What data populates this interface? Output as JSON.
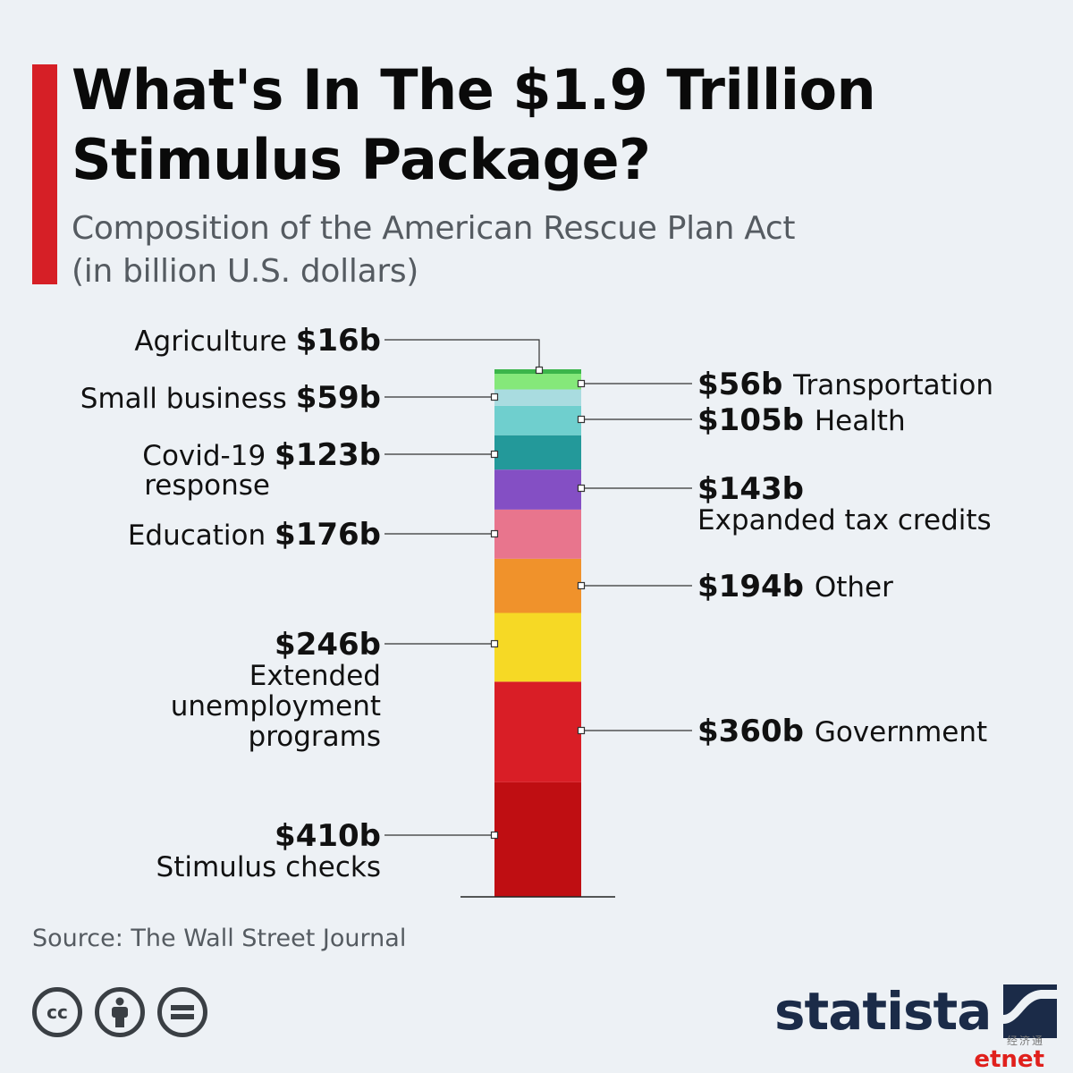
{
  "header": {
    "title_line1": "What's In The $1.9 Trillion",
    "title_line2": "Stimulus Package?",
    "subtitle_line1": "Composition of the American Rescue Plan Act",
    "subtitle_line2": "(in billion U.S. dollars)"
  },
  "chart_data": {
    "type": "bar",
    "subtype": "stacked-single-column",
    "title": "What's In The $1.9 Trillion Stimulus Package?",
    "subtitle": "Composition of the American Rescue Plan Act (in billion U.S. dollars)",
    "unit": "billion U.S. dollars",
    "series": [
      {
        "name": "Stimulus checks",
        "value": 410,
        "value_label": "$410b",
        "label_lines": [
          "Stimulus checks"
        ],
        "color": "#bf0e12",
        "side": "left"
      },
      {
        "name": "Government",
        "value": 360,
        "value_label": "$360b",
        "label_lines": [
          "Government"
        ],
        "color": "#d91e26",
        "side": "right"
      },
      {
        "name": "Extended unemployment programs",
        "value": 246,
        "value_label": "$246b",
        "label_lines": [
          "Extended",
          "unemployment",
          "programs"
        ],
        "color": "#f6d925",
        "side": "left"
      },
      {
        "name": "Other",
        "value": 194,
        "value_label": "$194b",
        "label_lines": [
          "Other"
        ],
        "color": "#f0922b",
        "side": "right"
      },
      {
        "name": "Education",
        "value": 176,
        "value_label": "$176b",
        "label_lines": [
          "Education"
        ],
        "color": "#e8758d",
        "side": "left"
      },
      {
        "name": "Expanded tax credits",
        "value": 143,
        "value_label": "$143b",
        "label_lines": [
          "Expanded tax credits"
        ],
        "color": "#844fc4",
        "side": "right"
      },
      {
        "name": "Covid-19 response",
        "value": 123,
        "value_label": "$123b",
        "label_lines": [
          "Covid-19",
          "response"
        ],
        "color": "#23999a",
        "side": "left"
      },
      {
        "name": "Health",
        "value": 105,
        "value_label": "$105b",
        "label_lines": [
          "Health"
        ],
        "color": "#6fcfce",
        "side": "right"
      },
      {
        "name": "Small business",
        "value": 59,
        "value_label": "$59b",
        "label_lines": [
          "Small business"
        ],
        "color": "#a9dce0",
        "side": "left"
      },
      {
        "name": "Transportation",
        "value": 56,
        "value_label": "$56b",
        "label_lines": [
          "Transportation"
        ],
        "color": "#85e87a",
        "side": "right"
      },
      {
        "name": "Agriculture",
        "value": 16,
        "value_label": "$16b",
        "label_lines": [
          "Agriculture"
        ],
        "color": "#3bb54a",
        "side": "left"
      }
    ]
  },
  "footer": {
    "source": "Source: The Wall Street Journal",
    "license_icons": [
      "cc-icon",
      "attribution-icon",
      "no-derivatives-icon"
    ],
    "brand": "statista",
    "watermark_cn": "经济通",
    "watermark_en": "etnet"
  }
}
